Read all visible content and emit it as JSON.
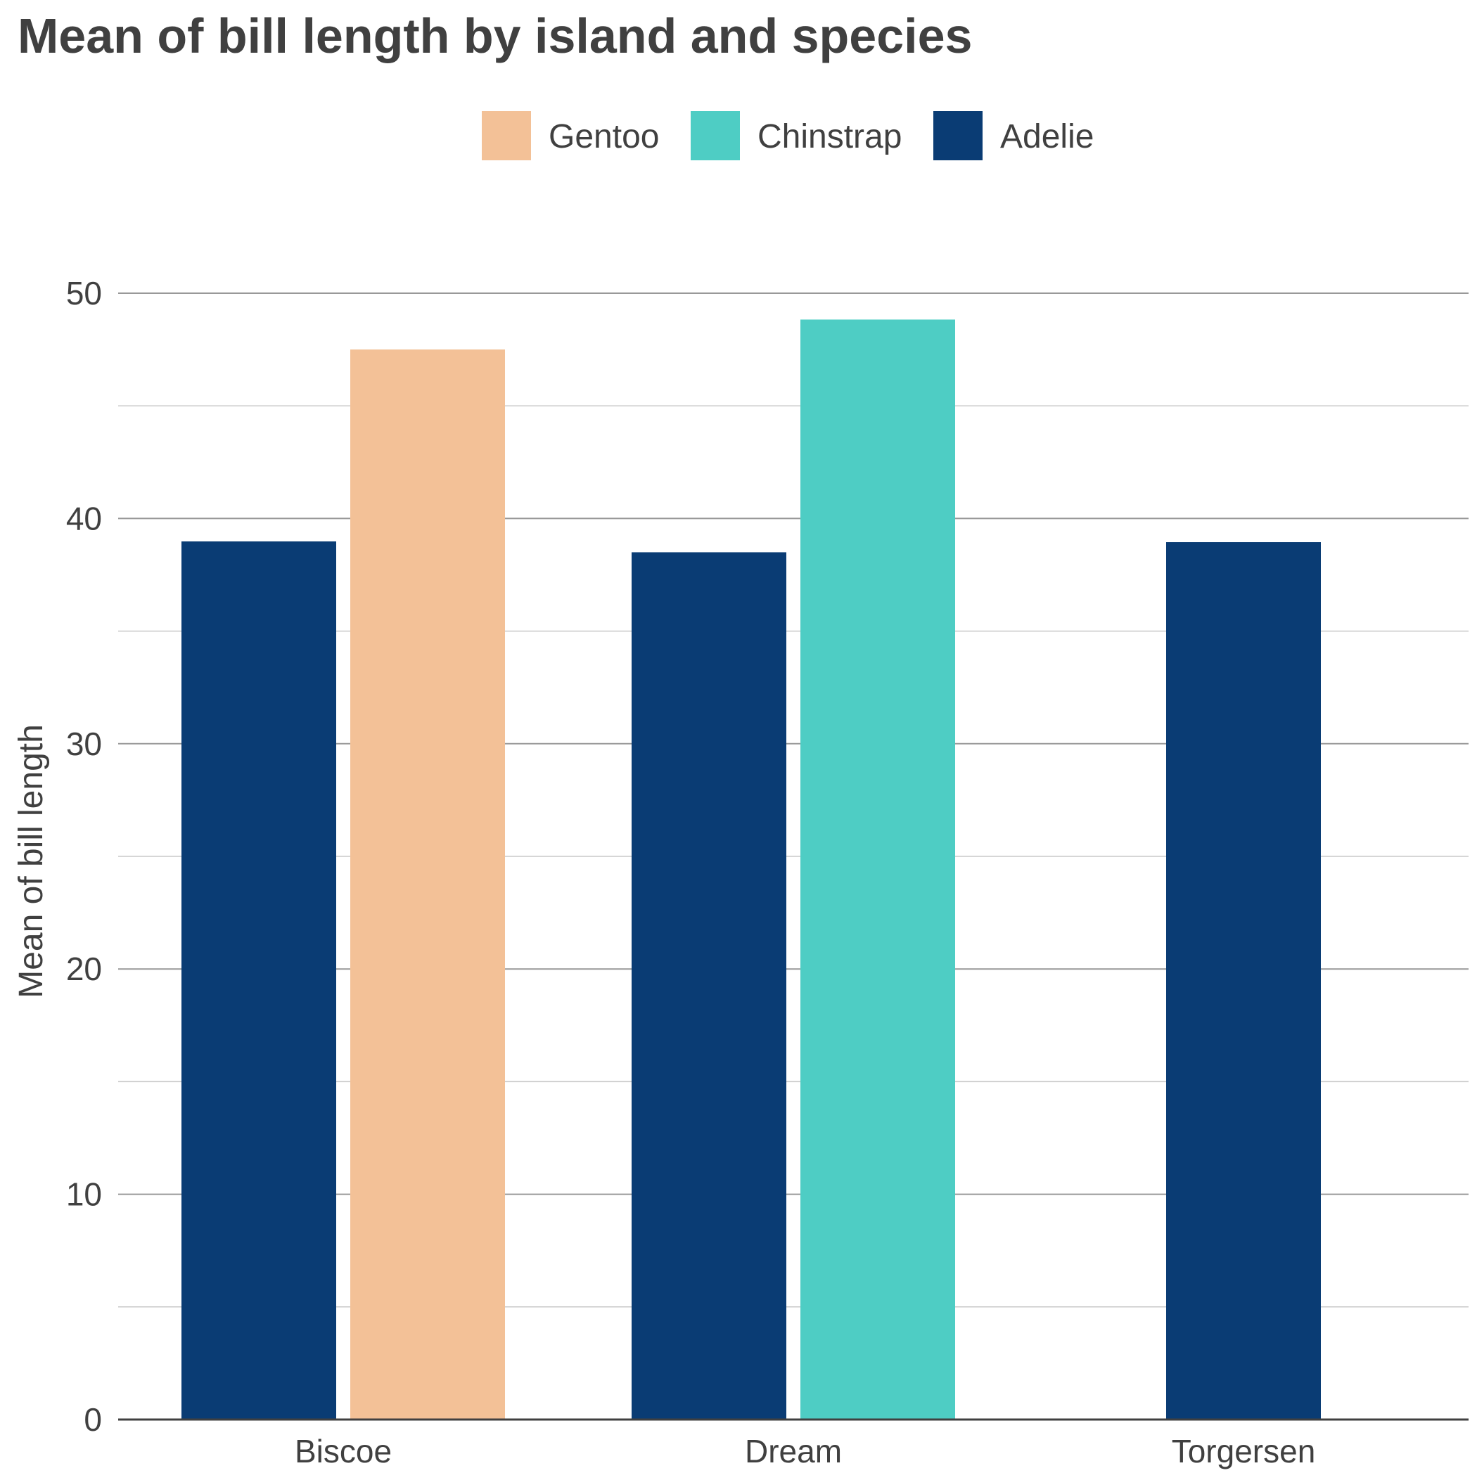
{
  "chart_data": {
    "type": "bar",
    "title": "Mean of bill length by island and species",
    "xlabel": "",
    "ylabel": "Mean of bill length",
    "ylim": [
      0,
      50
    ],
    "yticks": [
      0,
      10,
      20,
      30,
      40,
      50
    ],
    "grid": true,
    "legend_position": "top",
    "categories": [
      "Biscoe",
      "Dream",
      "Torgersen"
    ],
    "legend": [
      {
        "name": "Gentoo",
        "color": "#F3C197"
      },
      {
        "name": "Chinstrap",
        "color": "#4ECDC4"
      },
      {
        "name": "Adelie",
        "color": "#0A3C74"
      }
    ],
    "bars": [
      {
        "category": "Biscoe",
        "series": "Adelie",
        "value": 38.98,
        "color": "#0A3C74"
      },
      {
        "category": "Biscoe",
        "series": "Gentoo",
        "value": 47.5,
        "color": "#F3C197"
      },
      {
        "category": "Dream",
        "series": "Adelie",
        "value": 38.5,
        "color": "#0A3C74"
      },
      {
        "category": "Dream",
        "series": "Chinstrap",
        "value": 48.83,
        "color": "#4ECDC4"
      },
      {
        "category": "Torgersen",
        "series": "Adelie",
        "value": 38.95,
        "color": "#0A3C74"
      }
    ]
  }
}
